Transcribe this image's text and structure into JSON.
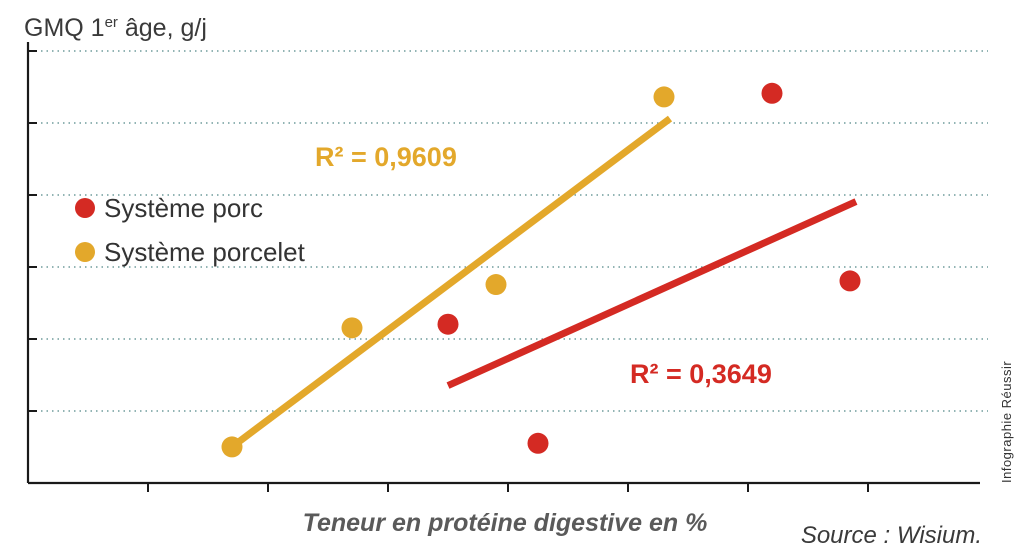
{
  "chart_data": {
    "type": "scatter",
    "title": "",
    "ylabel": "GMQ 1",
    "ylabel_sup": "er",
    "ylabel_suffix": " âge, g/j",
    "xlabel": "Teneur en protéine digestive en %",
    "source": "Source : Wisium.",
    "credit": "Infographie Réussir",
    "x_tick_count": 8,
    "y_gridline_count": 6,
    "xlim": [
      0,
      8
    ],
    "ylim": [
      0,
      6
    ],
    "grid": "horizontal dotted",
    "legend_position": "left",
    "series": [
      {
        "name": "Système porc",
        "color": "#d42a23",
        "points": [
          {
            "x": 3.5,
            "y": 2.2
          },
          {
            "x": 4.25,
            "y": 0.55
          },
          {
            "x": 6.2,
            "y": 5.4
          },
          {
            "x": 6.85,
            "y": 2.8
          }
        ],
        "trendline": {
          "x": [
            3.5,
            6.9
          ],
          "y": [
            1.35,
            3.9
          ]
        },
        "r2_label": "R² = 0,3649"
      },
      {
        "name": "Système porcelet",
        "color": "#e3a82b",
        "points": [
          {
            "x": 1.7,
            "y": 0.5
          },
          {
            "x": 2.7,
            "y": 2.15
          },
          {
            "x": 3.9,
            "y": 2.75
          },
          {
            "x": 5.3,
            "y": 5.35
          }
        ],
        "trendline": {
          "x": [
            1.7,
            5.35
          ],
          "y": [
            0.5,
            5.05
          ]
        },
        "r2_label": "R² = 0,9609"
      }
    ]
  }
}
